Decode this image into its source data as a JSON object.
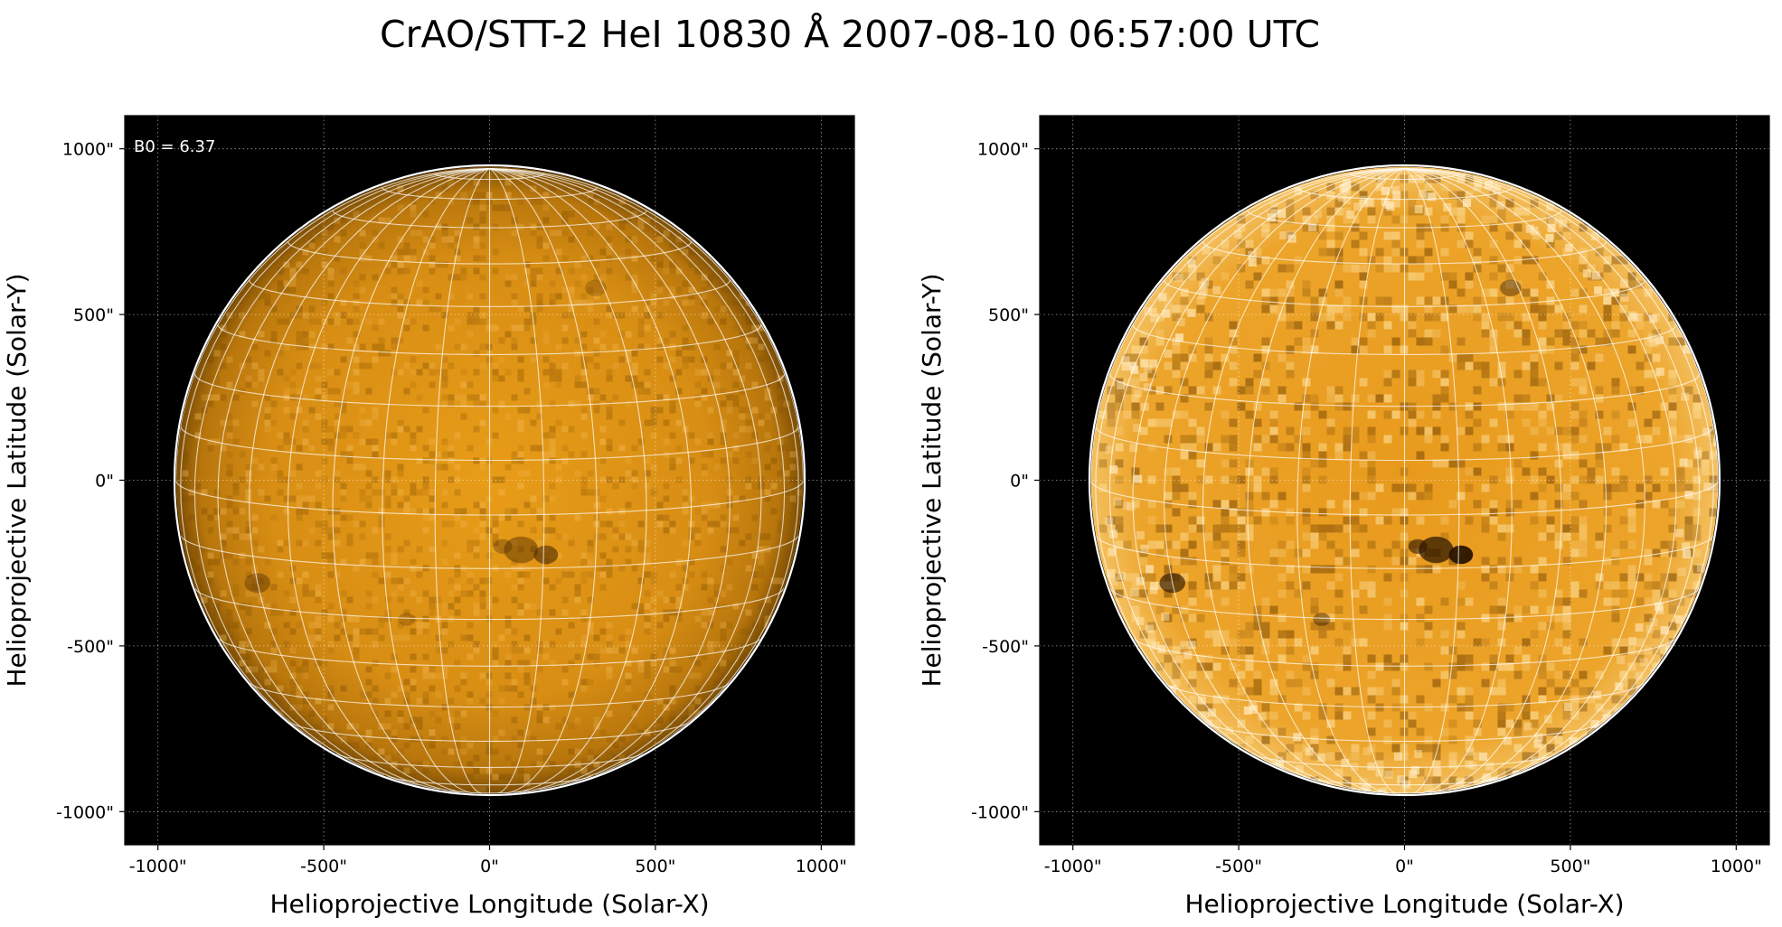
{
  "figure": {
    "title": "CrAO/STT-2 HeI 10830 Å 2007-08-10 06:57:00 UTC",
    "colors": {
      "background": "#ffffff",
      "plot_background": "#000000",
      "disk_base": "#d08a10",
      "disk_light": "#f0b030",
      "limb": "#ffffff",
      "grid": "#ffffff"
    }
  },
  "chart_data": [
    {
      "type": "heatmap",
      "image": "solar disk, HeI 10830 Å",
      "annotation": "B0 = 6.37",
      "xlabel": "Helioprojective Longitude (Solar-X)",
      "ylabel": "Helioprojective Latitude (Solar-Y)",
      "xlim": [
        -1100,
        1100
      ],
      "ylim": [
        -1100,
        1100
      ],
      "xticks": [
        -1000,
        -500,
        0,
        500,
        1000
      ],
      "yticks": [
        -1000,
        -500,
        0,
        500,
        1000
      ],
      "xtick_labels": [
        "-1000\"",
        "-500\"",
        "0\"",
        "500\"",
        "1000\""
      ],
      "ytick_labels": [
        "-1000\"",
        "-500\"",
        "0\"",
        "500\"",
        "1000\""
      ],
      "solar_radius_arcsec": 946,
      "b0_deg": 6.37,
      "grid": true,
      "heliographic_grid": true
    },
    {
      "type": "heatmap",
      "image": "solar disk, HeI 10830 Å, limb-darkening corrected",
      "annotation": "",
      "xlabel": "Helioprojective Longitude (Solar-X)",
      "ylabel": "Helioprojective Latitude (Solar-Y)",
      "xlim": [
        -1100,
        1100
      ],
      "ylim": [
        -1100,
        1100
      ],
      "xticks": [
        -1000,
        -500,
        0,
        500,
        1000
      ],
      "yticks": [
        -1000,
        -500,
        0,
        500,
        1000
      ],
      "xtick_labels": [
        "-1000\"",
        "-500\"",
        "0\"",
        "500\"",
        "1000\""
      ],
      "ytick_labels": [
        "-1000\"",
        "-500\"",
        "0\"",
        "500\"",
        "1000\""
      ],
      "solar_radius_arcsec": 946,
      "b0_deg": 6.37,
      "grid": true,
      "heliographic_grid": true
    }
  ]
}
